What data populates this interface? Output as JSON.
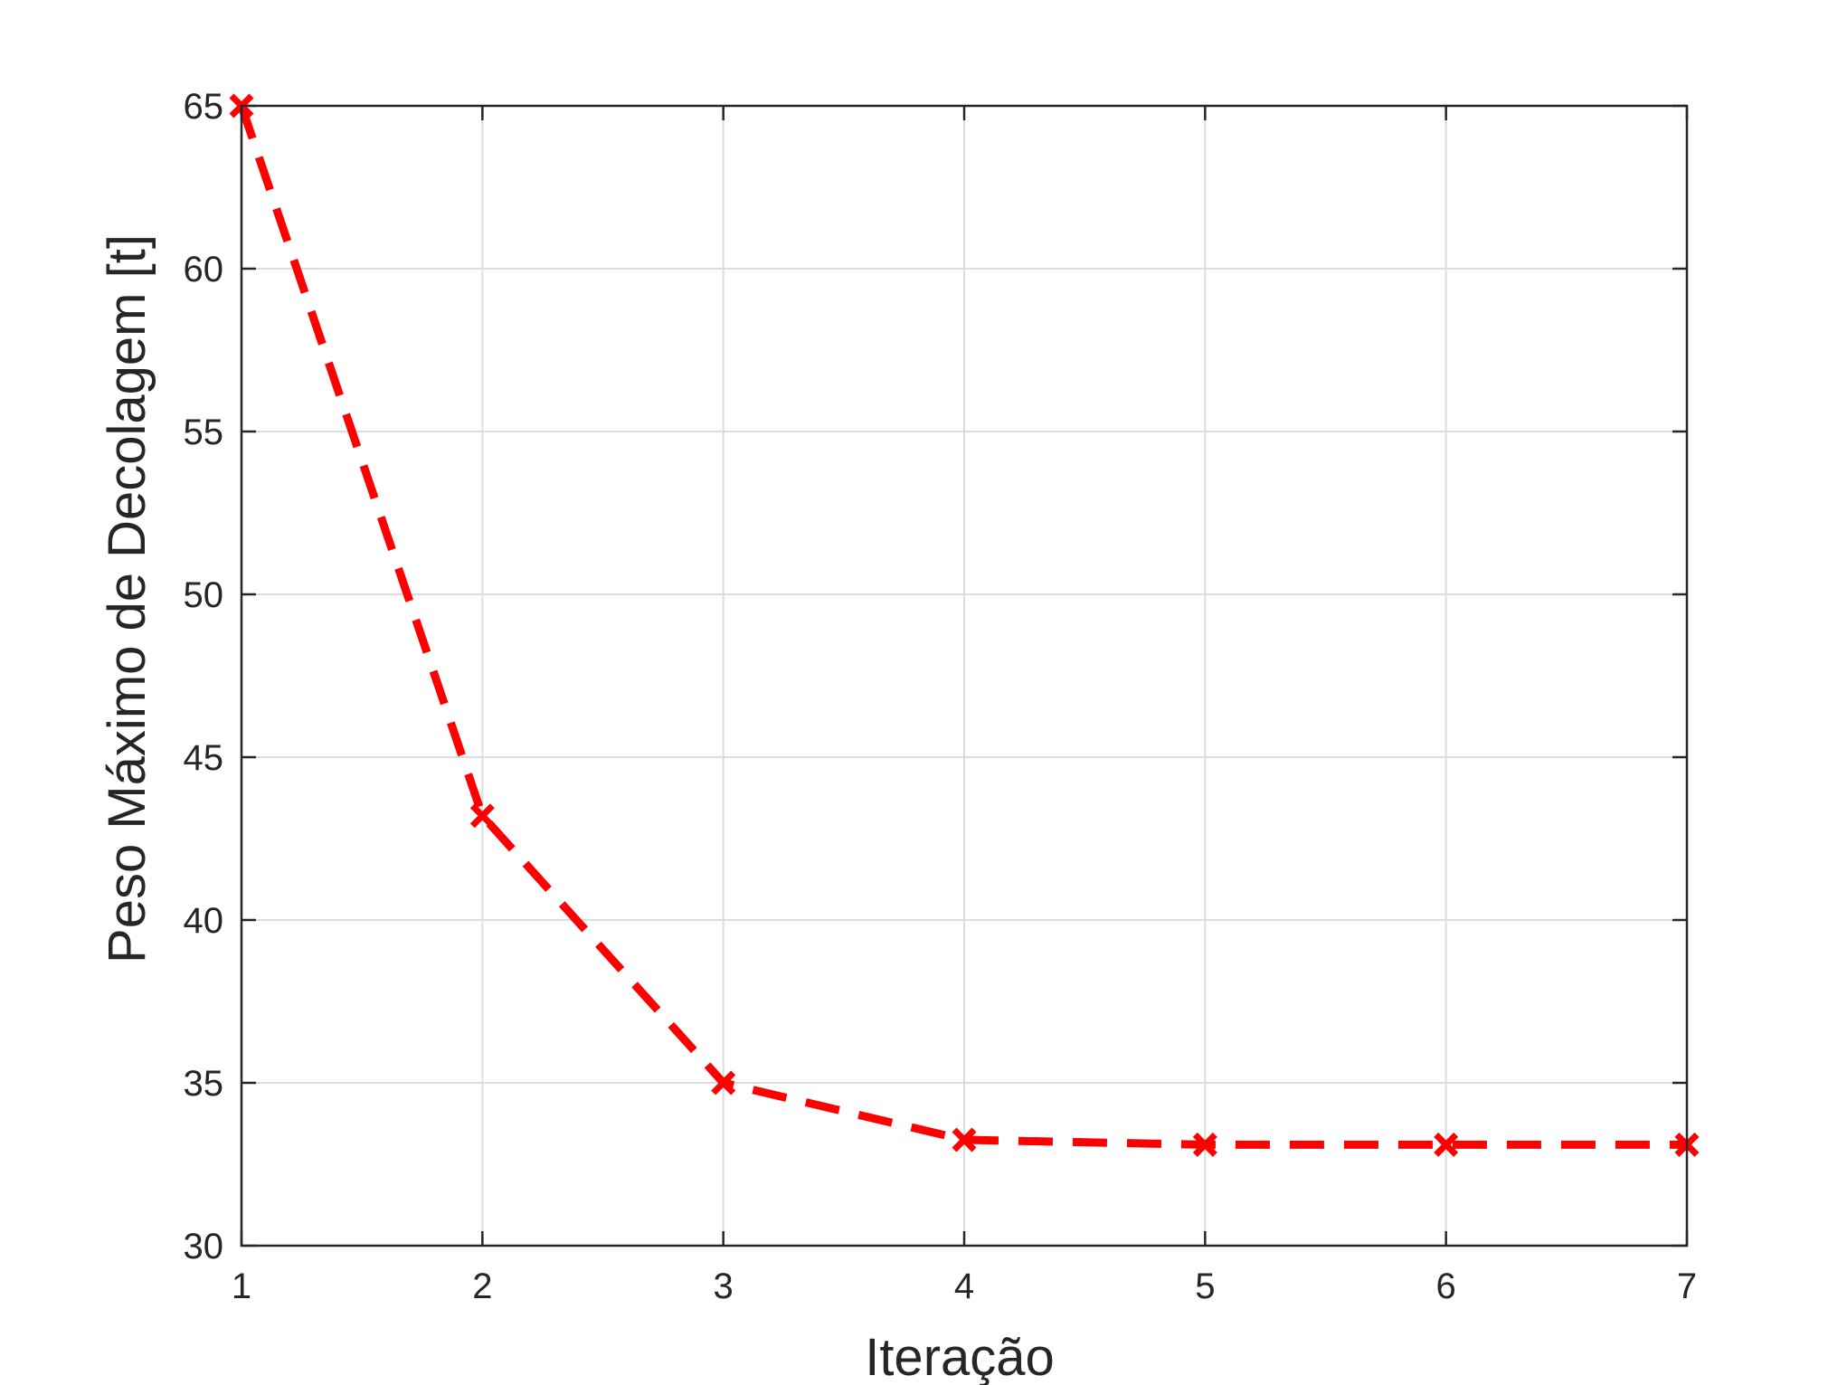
{
  "chart_data": {
    "type": "line",
    "title": "",
    "xlabel": "Iteração",
    "ylabel": "Peso Máximo de Decolagem [t]",
    "xlim": [
      1,
      7
    ],
    "ylim": [
      30,
      65
    ],
    "xticks": [
      1,
      2,
      3,
      4,
      5,
      6,
      7
    ],
    "yticks": [
      30,
      35,
      40,
      45,
      50,
      55,
      60,
      65
    ],
    "grid": true,
    "series": [
      {
        "x": [
          1,
          2,
          3,
          4,
          5,
          6,
          7
        ],
        "values": [
          65.0,
          43.2,
          35.0,
          33.25,
          33.1,
          33.1,
          33.1
        ],
        "color": "#ff0000",
        "line_style": "dashed",
        "marker": "x"
      }
    ]
  }
}
